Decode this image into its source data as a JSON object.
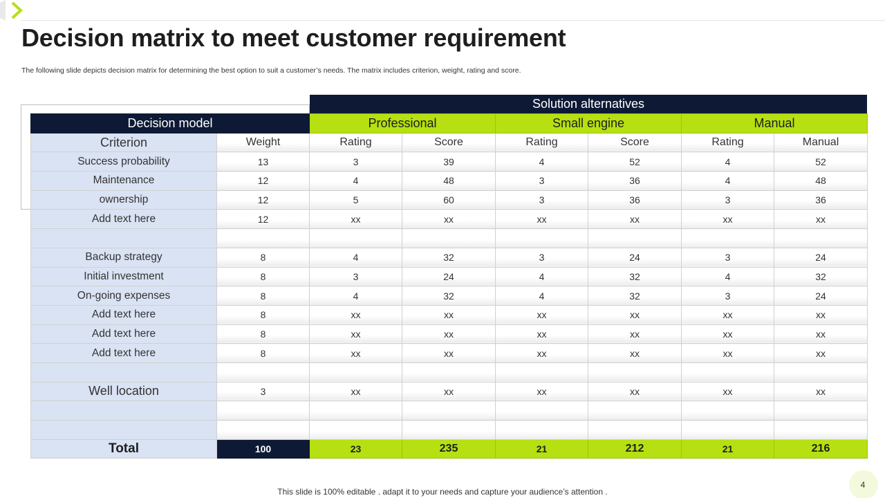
{
  "slide": {
    "title": "Decision matrix to meet customer requirement",
    "subtitle": "The following slide depicts decision matrix for determining the best option to suit a customer’s needs. The matrix includes criterion, weight, rating and score.",
    "footer": "This slide is 100% editable . adapt it to your needs and capture your audience’s attention .",
    "page_number": "4"
  },
  "colors": {
    "navy": "#0e1a35",
    "lime": "#b6e011",
    "criterion_bg": "#dae3f3",
    "page_badge": "#f3f9dc"
  },
  "icons": {
    "corner": "chevron-right-icon"
  },
  "matrix": {
    "banner": "Solution alternatives",
    "model_header": "Decision model",
    "alternatives": [
      "Professional",
      "Small engine",
      "Manual"
    ],
    "subheaders": [
      "Criterion",
      "Weight",
      "Rating",
      "Score",
      "Rating",
      "Score",
      "Rating",
      "Manual"
    ],
    "rows": [
      [
        "Success probability",
        "13",
        "3",
        "39",
        "4",
        "52",
        "4",
        "52"
      ],
      [
        "Maintenance",
        "12",
        "4",
        "48",
        "3",
        "36",
        "4",
        "48"
      ],
      [
        "ownership",
        "12",
        "5",
        "60",
        "3",
        "36",
        "3",
        "36"
      ],
      [
        "Add text here",
        "12",
        "xx",
        "xx",
        "xx",
        "xx",
        "xx",
        "xx"
      ],
      [
        "",
        "",
        "",
        "",
        "",
        "",
        "",
        ""
      ],
      [
        "Backup strategy",
        "8",
        "4",
        "32",
        "3",
        "24",
        "3",
        "24"
      ],
      [
        "Initial investment",
        "8",
        "3",
        "24",
        "4",
        "32",
        "4",
        "32"
      ],
      [
        "On-going expenses",
        "8",
        "4",
        "32",
        "4",
        "32",
        "3",
        "24"
      ],
      [
        "Add text here",
        "8",
        "xx",
        "xx",
        "xx",
        "xx",
        "xx",
        "xx"
      ],
      [
        "Add text here",
        "8",
        "xx",
        "xx",
        "xx",
        "xx",
        "xx",
        "xx"
      ],
      [
        "Add text here",
        "8",
        "xx",
        "xx",
        "xx",
        "xx",
        "xx",
        "xx"
      ],
      [
        "",
        "",
        "",
        "",
        "",
        "",
        "",
        ""
      ],
      [
        "Well location",
        "3",
        "xx",
        "xx",
        "xx",
        "xx",
        "xx",
        "xx"
      ],
      [
        "",
        "",
        "",
        "",
        "",
        "",
        "",
        ""
      ],
      [
        "",
        "",
        "",
        "",
        "",
        "",
        "",
        ""
      ]
    ],
    "total": [
      "Total",
      "100",
      "23",
      "235",
      "21",
      "212",
      "21",
      "216"
    ]
  }
}
